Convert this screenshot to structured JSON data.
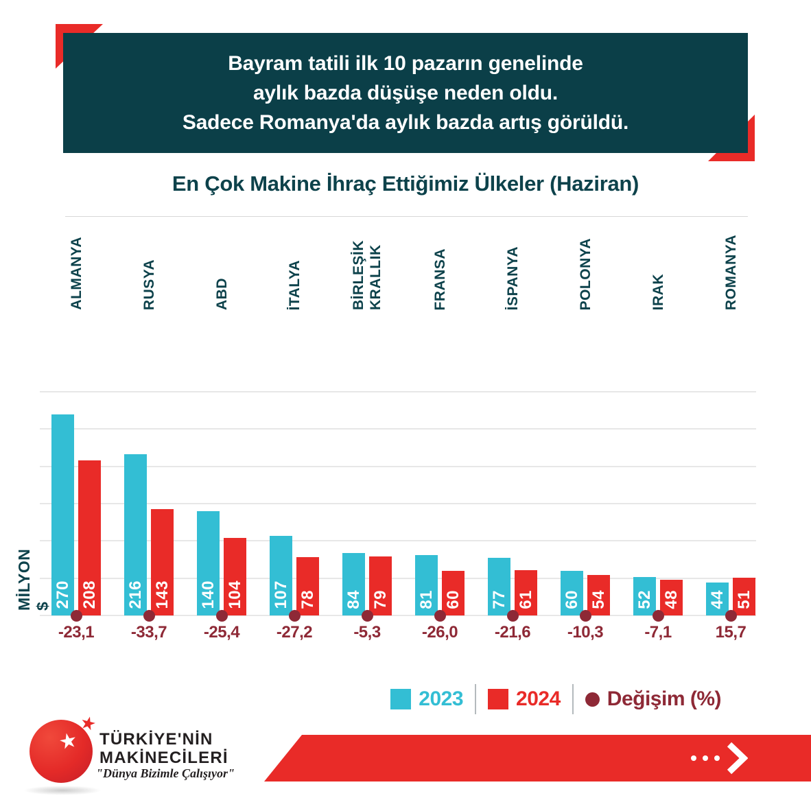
{
  "header": {
    "line1": "Bayram tatili ilk 10 pazarın genelinde",
    "line2": "aylık bazda düşüşe neden oldu.",
    "line3": "Sadece Romanya'da aylık bazda artış görüldü."
  },
  "chart": {
    "title": "En Çok Makine İhraç Ettiğimiz Ülkeler (Haziran)",
    "y_axis_label": "MİLYON $"
  },
  "chart_data": {
    "type": "bar",
    "title": "En Çok Makine İhraç Ettiğimiz Ülkeler (Haziran)",
    "ylabel": "MİLYON $",
    "ylim": [
      0,
      300
    ],
    "gridline_step": 50,
    "grid": true,
    "legend_position": "bottom-right",
    "categories": [
      "ALMANYA",
      "RUSYA",
      "ABD",
      "İTALYA",
      "BİRLEŞİK KRALLIK",
      "FRANSA",
      "İSPANYA",
      "POLONYA",
      "IRAK",
      "ROMANYA"
    ],
    "categories_display": [
      "ALMANYA",
      "RUSYA",
      "ABD",
      "İTALYA",
      "BİRLEŞİK\nKRALLIK",
      "FRANSA",
      "İSPANYA",
      "POLONYA",
      "IRAK",
      "ROMANYA"
    ],
    "series": [
      {
        "name": "2023",
        "color": "#33bed4",
        "values": [
          270,
          216,
          140,
          107,
          84,
          81,
          77,
          60,
          52,
          44
        ]
      },
      {
        "name": "2024",
        "color": "#e92b28",
        "values": [
          208,
          143,
          104,
          78,
          79,
          60,
          61,
          54,
          48,
          51
        ]
      }
    ],
    "change_series": {
      "name": "Değişim (%)",
      "color": "#8e2936",
      "values": [
        -23.1,
        -33.7,
        -25.4,
        -27.2,
        -5.3,
        -26.0,
        -21.6,
        -10.3,
        -7.1,
        15.7
      ],
      "labels": [
        "-23,1",
        "-33,7",
        "-25,4",
        "-27,2",
        "-5,3",
        "-26,0",
        "-21,6",
        "-10,3",
        "-7,1",
        "15,7"
      ]
    }
  },
  "legend": {
    "items": [
      {
        "label": "2023",
        "color": "#33bed4",
        "marker": "square"
      },
      {
        "label": "2024",
        "color": "#e92b28",
        "marker": "square"
      },
      {
        "label": "Değişim (%)",
        "color": "#8e2936",
        "marker": "circle"
      }
    ]
  },
  "footer": {
    "brand_line1": "TÜRKİYE'NİN",
    "brand_line2": "MAKİNECİLERİ",
    "tagline": "\"Dünya Bizimle Çalışıyor\"",
    "star_glyph": "★",
    "arrow_dots": 3
  },
  "colors": {
    "header_bg": "#0b3f48",
    "accent_red": "#e92b28",
    "teal_text": "#0d424b",
    "maroon": "#8e2936",
    "gridline": "#e7e7e7"
  }
}
